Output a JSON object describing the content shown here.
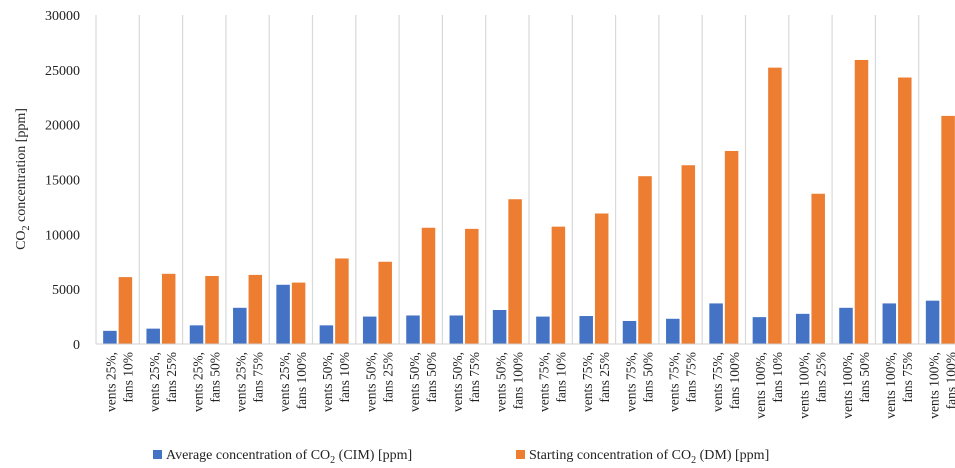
{
  "chart_data": {
    "type": "bar",
    "ylabel_parts": [
      "CO",
      "2",
      " concentration [ppm]"
    ],
    "xlabel": "",
    "ylim": [
      0,
      30000
    ],
    "yticks": [
      0,
      5000,
      10000,
      15000,
      20000,
      25000,
      30000
    ],
    "grid": "vertical",
    "legend_position": "bottom",
    "categories": [
      {
        "line1": "vents 25%,",
        "line2": "fans 10%"
      },
      {
        "line1": "vents 25%,",
        "line2": "fans 25%"
      },
      {
        "line1": "vents 25%,",
        "line2": "fans 50%"
      },
      {
        "line1": "vents 25%,",
        "line2": "fans 75%"
      },
      {
        "line1": "vents 25%,",
        "line2": "fans 100%"
      },
      {
        "line1": "vents 50%,",
        "line2": "fans 10%"
      },
      {
        "line1": "vents 50%,",
        "line2": "fans 25%"
      },
      {
        "line1": "vents 50%,",
        "line2": "fans 50%"
      },
      {
        "line1": "vents 50%,",
        "line2": "fans 75%"
      },
      {
        "line1": "vents 50%,",
        "line2": "fans 100%"
      },
      {
        "line1": "vents 75%,",
        "line2": "fans 10%"
      },
      {
        "line1": "vents 75%,",
        "line2": "fans 25%"
      },
      {
        "line1": "vents 75%,",
        "line2": "fans 50%"
      },
      {
        "line1": "vents 75%,",
        "line2": "fans 75%"
      },
      {
        "line1": "vents 75%,",
        "line2": "fans 100%"
      },
      {
        "line1": "vents 100%,",
        "line2": "fans 10%"
      },
      {
        "line1": "vents 100%,",
        "line2": "fans 25%"
      },
      {
        "line1": "vents 100%,",
        "line2": "fans 50%"
      },
      {
        "line1": "vents 100%,",
        "line2": "fans 75%"
      },
      {
        "line1": "vents 100%,",
        "line2": "fans 100%"
      }
    ],
    "series": [
      {
        "name_parts": [
          "Average concentration of CO",
          "2",
          " (CIM) [ppm]"
        ],
        "color": "#4472C4",
        "values": [
          1200,
          1400,
          1700,
          3300,
          5400,
          1700,
          2500,
          2600,
          2600,
          3100,
          2500,
          2550,
          2100,
          2300,
          3700,
          2450,
          2750,
          3300,
          3700,
          3950
        ]
      },
      {
        "name_parts": [
          "Starting concentration of CO",
          "2",
          " (DM) [ppm]"
        ],
        "color": "#ED7D31",
        "values": [
          6100,
          6400,
          6200,
          6300,
          5600,
          7800,
          7500,
          10600,
          10500,
          13200,
          10700,
          11900,
          15300,
          16300,
          17600,
          25200,
          13700,
          25900,
          24300,
          20800
        ]
      }
    ]
  }
}
